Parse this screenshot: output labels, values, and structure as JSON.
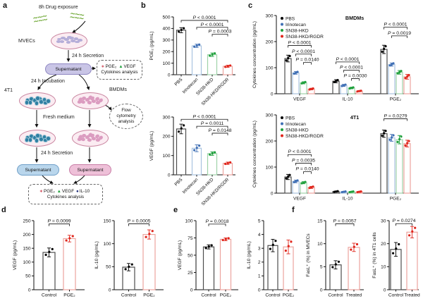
{
  "panel_labels": {
    "a": "a",
    "b": "b",
    "c": "c",
    "d": "d",
    "e": "e",
    "f": "f"
  },
  "palette": {
    "black": {
      "pt": "#000000",
      "bar": "#4d4d4d"
    },
    "blue": {
      "pt": "#3f6fb5",
      "bar": "#a9c3e0"
    },
    "green": {
      "pt": "#1fa03c",
      "bar": "#9fd3a9"
    },
    "red": {
      "pt": "#e0251b",
      "bar": "#eca49e"
    }
  },
  "panel_a": {
    "drug_exposure": "8h Drug exposure",
    "mvecs_label": "MVECs",
    "secretion_1": "24 h Secretion",
    "supernatant": "Supernatant",
    "incubation": "24 h Incubation",
    "t4t1_label": "4T1",
    "bmdm_label": "BMDMs",
    "flow": "Flow cytometry analysis",
    "fresh_medium": "Fresh medium",
    "secretion_2": "24 h Secretion",
    "molecule_glyph": "∼∼∼",
    "cell_colors": {
      "mvec": "#b5aed8",
      "t4t1": "#2f7fa3",
      "bmdm": "#db9cc0"
    },
    "analysis_1": {
      "items": [
        {
          "symbol": "∗",
          "color": "#c21f30",
          "label": "PGE₂"
        },
        {
          "symbol": "▲",
          "color": "#1fa03c",
          "label": "VEGF"
        }
      ],
      "caption": "Cytokines analysis"
    },
    "analysis_2": {
      "items": [
        {
          "symbol": "∗",
          "color": "#c21f30",
          "label": "PGE₂"
        },
        {
          "symbol": "▲",
          "color": "#1fa03c",
          "label": "VEGF"
        },
        {
          "symbol": "●",
          "color": "#1f2d7a",
          "label": "IL-10"
        }
      ],
      "caption": "Cytokines analysis"
    }
  },
  "chart_data": [
    {
      "id": "b_pge2",
      "type": "bar",
      "title": "",
      "ylabel": "PGE₂ (pg/mL)",
      "ylim": [
        0,
        500
      ],
      "yticks": [
        0,
        100,
        200,
        300,
        400,
        500
      ],
      "categories": [
        "PBS",
        "Irinotecan",
        "SN38-HKD",
        "SN38-HKD/RGDR"
      ],
      "values": [
        385,
        250,
        173,
        73
      ],
      "errors": [
        22,
        14,
        15,
        9
      ],
      "color_keys": [
        "black",
        "blue",
        "green",
        "red"
      ],
      "annotations": [
        {
          "text": "P < 0.0001",
          "from": 0,
          "to": 3,
          "y": 470
        },
        {
          "text": "P < 0.0001",
          "from": 1,
          "to": 3,
          "y": 410
        },
        {
          "text": "P = 0.0003",
          "from": 2,
          "to": 3,
          "y": 350
        }
      ]
    },
    {
      "id": "b_vegf",
      "type": "bar",
      "title": "",
      "ylabel": "VEGF (pg/mL)",
      "ylim": [
        0,
        300
      ],
      "yticks": [
        0,
        100,
        200,
        300
      ],
      "categories": [
        "PBS",
        "Irinotecan",
        "SN38-HKD",
        "SN38-HKD/RGDR"
      ],
      "values": [
        238,
        138,
        110,
        60
      ],
      "errors": [
        25,
        18,
        9,
        6
      ],
      "color_keys": [
        "black",
        "blue",
        "green",
        "red"
      ],
      "annotations": [
        {
          "text": "P < 0.0001",
          "from": 0,
          "to": 3,
          "y": 288
        },
        {
          "text": "P = 0.0011",
          "from": 1,
          "to": 3,
          "y": 252
        },
        {
          "text": "P = 0.0148",
          "from": 2,
          "to": 3,
          "y": 216
        }
      ]
    },
    {
      "id": "c_bmdm",
      "type": "grouped_bar",
      "title": "BMDMs",
      "ylabel": "Cytokines concentration (pg/mL)",
      "ylim": [
        0,
        300
      ],
      "yticks": [
        0,
        100,
        200,
        300
      ],
      "categories": [
        "VEGF",
        "IL-10",
        "PGE₂"
      ],
      "series": [
        {
          "name": "PBS",
          "color_key": "black",
          "values": [
            135,
            48,
            170
          ],
          "errors": [
            13,
            6,
            16
          ]
        },
        {
          "name": "Irinotecan",
          "color_key": "blue",
          "values": [
            80,
            32,
            112
          ],
          "errors": [
            5,
            4,
            6
          ]
        },
        {
          "name": "SN38-HKD",
          "color_key": "green",
          "values": [
            42,
            22,
            82
          ],
          "errors": [
            4,
            3,
            7
          ]
        },
        {
          "name": "SN38-HKD/RGDR",
          "color_key": "red",
          "values": [
            18,
            10,
            65
          ],
          "errors": [
            3,
            2,
            9
          ]
        }
      ],
      "annotations": [
        {
          "text": "P < 0.0001",
          "from": [
            0,
            0
          ],
          "to": [
            0,
            3
          ],
          "y": 185
        },
        {
          "text": "P < 0.0001",
          "from": [
            0,
            1
          ],
          "to": [
            0,
            3
          ],
          "y": 152
        },
        {
          "text": "P = 0.0140",
          "from": [
            0,
            2
          ],
          "to": [
            0,
            3
          ],
          "y": 120
        },
        {
          "text": "P < 0.0001",
          "from": [
            1,
            0
          ],
          "to": [
            1,
            3
          ],
          "y": 122
        },
        {
          "text": "P < 0.0001",
          "from": [
            1,
            1
          ],
          "to": [
            1,
            3
          ],
          "y": 90
        },
        {
          "text": "P = 0.0030",
          "from": [
            1,
            2
          ],
          "to": [
            1,
            3
          ],
          "y": 58
        },
        {
          "text": "P < 0.0001",
          "from": [
            2,
            0
          ],
          "to": [
            2,
            3
          ],
          "y": 255
        },
        {
          "text": "P = 0.0019",
          "from": [
            2,
            1
          ],
          "to": [
            2,
            3
          ],
          "y": 222
        }
      ]
    },
    {
      "id": "c_4t1",
      "type": "grouped_bar",
      "title": "4T1",
      "ylabel": "Cytokines concentration (pg/mL)",
      "ylim": [
        0,
        300
      ],
      "yticks": [
        0,
        100,
        200,
        300
      ],
      "categories": [
        "VEGF",
        "IL-10",
        "PGE₂"
      ],
      "series": [
        {
          "name": "PBS",
          "color_key": "black",
          "values": [
            62,
            6,
            228
          ],
          "errors": [
            10,
            2,
            14
          ]
        },
        {
          "name": "Irinotecan",
          "color_key": "blue",
          "values": [
            45,
            5,
            212
          ],
          "errors": [
            5,
            2,
            13
          ]
        },
        {
          "name": "SN38-HKD",
          "color_key": "green",
          "values": [
            40,
            5,
            205
          ],
          "errors": [
            4,
            2,
            16
          ]
        },
        {
          "name": "SN38-HKD/RGDR",
          "color_key": "red",
          "values": [
            22,
            5,
            190
          ],
          "errors": [
            4,
            2,
            13
          ]
        }
      ],
      "annotations": [
        {
          "text": "P < 0.0001",
          "from": [
            0,
            0
          ],
          "to": [
            0,
            3
          ],
          "y": 148
        },
        {
          "text": "P = 0.0035",
          "from": [
            0,
            1
          ],
          "to": [
            0,
            3
          ],
          "y": 115
        },
        {
          "text": "P = 0.0140",
          "from": [
            0,
            2
          ],
          "to": [
            0,
            3
          ],
          "y": 82
        },
        {
          "text": "P = 0.0279",
          "from": [
            2,
            0
          ],
          "to": [
            2,
            3
          ],
          "y": 285
        }
      ]
    },
    {
      "id": "d_vegf",
      "type": "bar",
      "title": "",
      "ylabel": "VEGF (pg/mL)",
      "ylim": [
        0,
        250
      ],
      "yticks": [
        0,
        50,
        100,
        150,
        200,
        250
      ],
      "categories": [
        "Control",
        "PGE₂"
      ],
      "values": [
        135,
        185
      ],
      "errors": [
        16,
        12
      ],
      "color_keys": [
        "black",
        "red"
      ],
      "annotations": [
        {
          "text": "P = 0.0099",
          "from": 0,
          "to": 1,
          "y": 238
        }
      ]
    },
    {
      "id": "d_il10",
      "type": "bar",
      "title": "",
      "ylabel": "IL-10 (pg/mL)",
      "ylim": [
        0,
        150
      ],
      "yticks": [
        0,
        50,
        100,
        150
      ],
      "categories": [
        "Control",
        "PGE₂"
      ],
      "values": [
        49,
        120
      ],
      "errors": [
        8,
        10
      ],
      "color_keys": [
        "black",
        "red"
      ],
      "annotations": [
        {
          "text": "P = 0.0005",
          "from": 0,
          "to": 1,
          "y": 143
        }
      ]
    },
    {
      "id": "e_vegf",
      "type": "bar",
      "title": "",
      "ylabel": "VEGF (pg/mL)",
      "ylim": [
        0,
        100
      ],
      "yticks": [
        0,
        25,
        50,
        75,
        100
      ],
      "categories": [
        "Control",
        "PGE₂"
      ],
      "values": [
        62,
        73
      ],
      "errors": [
        3,
        2
      ],
      "color_keys": [
        "black",
        "red"
      ],
      "annotations": [
        {
          "text": "P = 0.0018",
          "from": 0,
          "to": 1,
          "y": 95
        }
      ]
    },
    {
      "id": "e_il10",
      "type": "bar",
      "title": "",
      "ylabel": "IL-10 (pg/mL)",
      "ylim": [
        0,
        5
      ],
      "yticks": [
        0,
        1,
        2,
        3,
        4,
        5
      ],
      "categories": [
        "Control",
        "PGE₂"
      ],
      "values": [
        3.2,
        3.1
      ],
      "errors": [
        0.45,
        0.5
      ],
      "color_keys": [
        "black",
        "red"
      ],
      "annotations": []
    },
    {
      "id": "f_mvec",
      "type": "bar",
      "title": "",
      "ylabel": "FasL⁺ (%) in MVECs",
      "ylim": [
        0,
        15
      ],
      "yticks": [
        0,
        5,
        10,
        15
      ],
      "categories": [
        "Control",
        "Treated"
      ],
      "values": [
        5.4,
        9.2
      ],
      "errors": [
        0.9,
        0.9
      ],
      "color_keys": [
        "black",
        "red"
      ],
      "annotations": [
        {
          "text": "P = 0.0057",
          "from": 0,
          "to": 1,
          "y": 14.3
        }
      ]
    },
    {
      "id": "f_4t1",
      "type": "bar",
      "title": "",
      "ylabel": "FasL⁺ (%) in 4T1 cells",
      "ylim": [
        0,
        30
      ],
      "yticks": [
        0,
        10,
        20,
        30
      ],
      "categories": [
        "Control",
        "Treated"
      ],
      "values": [
        17.5,
        25
      ],
      "errors": [
        3,
        2.5
      ],
      "color_keys": [
        "black",
        "red"
      ],
      "annotations": [
        {
          "text": "P = 0.0274",
          "from": 0,
          "to": 1,
          "y": 28.7
        }
      ]
    }
  ]
}
